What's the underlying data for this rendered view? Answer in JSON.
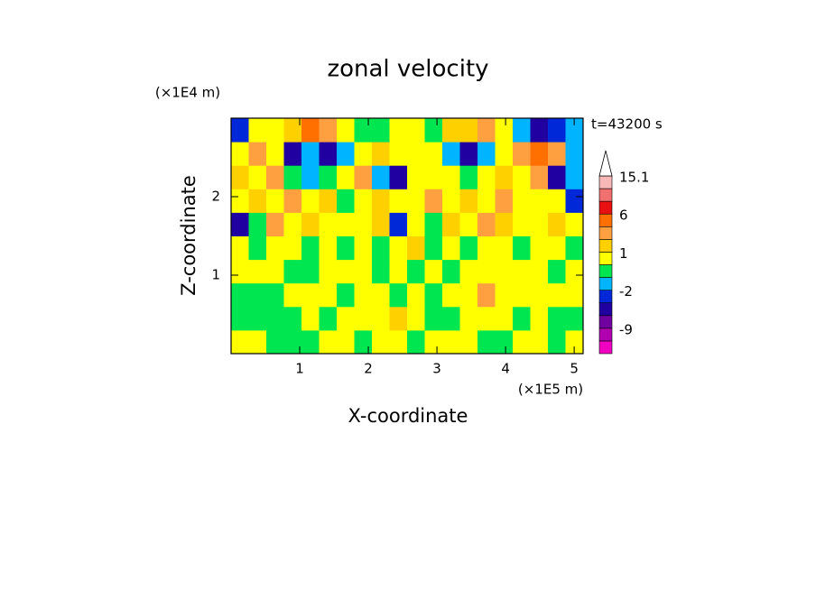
{
  "chart_data": {
    "type": "contour",
    "title": "zonal velocity",
    "xlabel": "X-coordinate",
    "ylabel": "Z-coordinate",
    "xscale_label": "(×1E5 m)",
    "yscale_label": "(×1E4 m)",
    "time_label": "t=43200 s",
    "xlim": [
      0,
      5.13
    ],
    "ylim": [
      0,
      3
    ],
    "xticks": [
      1,
      2,
      3,
      4,
      5
    ],
    "yticks": [
      1,
      2
    ],
    "levels": [
      -15,
      -12,
      -9,
      -6,
      -4,
      -2,
      -1,
      0,
      1,
      2,
      4,
      6,
      9,
      12,
      15.1
    ],
    "colors": [
      "#f000c0",
      "#b000b0",
      "#7000a0",
      "#2000a0",
      "#0028d8",
      "#00b4ff",
      "#00e650",
      "#ffff00",
      "#ffd000",
      "#ffa040",
      "#ff7000",
      "#e81010",
      "#f07070",
      "#f8b8b8"
    ],
    "colorbar_ticks": [
      15.1,
      6,
      1,
      -2,
      -9
    ],
    "z": [
      [
        0.5,
        0.5,
        -0.5,
        -0.5,
        -0.5,
        0.5,
        0.5,
        -0.5,
        0.5,
        0.5,
        -0.5,
        0.5,
        0.5,
        0.5,
        -0.5,
        -0.5,
        0.5,
        0.5,
        -0.5,
        0.5
      ],
      [
        -0.5,
        -0.5,
        -0.5,
        -0.5,
        0.5,
        -0.5,
        0.5,
        0.5,
        0.5,
        1.5,
        0.5,
        -0.5,
        -0.5,
        0.5,
        0.5,
        0.5,
        -0.5,
        0.5,
        -0.5,
        -0.5
      ],
      [
        -0.5,
        -0.5,
        -0.5,
        0.5,
        0.5,
        0.5,
        -0.5,
        0.5,
        0.5,
        -0.5,
        0.5,
        -0.5,
        0.5,
        0.5,
        2,
        0.5,
        0.5,
        0.5,
        0.5,
        0.5
      ],
      [
        0.5,
        0.5,
        0.5,
        -0.5,
        -0.5,
        0.5,
        0.5,
        0.5,
        -0.5,
        0.5,
        -0.5,
        0.5,
        -0.5,
        0.5,
        0.5,
        0.5,
        0.5,
        0.5,
        -0.5,
        0.5
      ],
      [
        0.5,
        -0.5,
        0.5,
        0.5,
        -0.5,
        0.5,
        -0.5,
        0.5,
        -0.5,
        0.5,
        1.5,
        -0.5,
        0.5,
        -0.5,
        0.5,
        0.5,
        -0.5,
        0.5,
        0.5,
        -0.5
      ],
      [
        -5,
        -0.5,
        2,
        0.5,
        1.5,
        0.5,
        0.5,
        0.5,
        1.5,
        -3,
        0.5,
        -0.5,
        1.5,
        0.5,
        2,
        1.5,
        0.5,
        0.5,
        1.5,
        0.5
      ],
      [
        0.5,
        1.5,
        0.5,
        2,
        0.5,
        1.5,
        -0.5,
        0.5,
        1.5,
        0.5,
        0.5,
        2,
        0.5,
        1.5,
        0.5,
        2,
        0.5,
        0.5,
        0.5,
        -3
      ],
      [
        1.5,
        0.5,
        2,
        -0.5,
        -1.5,
        -0.5,
        0.5,
        2,
        -1.5,
        -5,
        0.5,
        0.5,
        0.5,
        -0.5,
        0.5,
        1.5,
        0.5,
        2,
        -5,
        -1.5
      ],
      [
        0.5,
        2,
        0.5,
        -5,
        -1.5,
        -5,
        -1.5,
        0.5,
        1.5,
        0.5,
        0.5,
        0.5,
        -1.5,
        -5,
        -1.5,
        0.5,
        2,
        4,
        3,
        -1.5
      ],
      [
        -3,
        0,
        0.5,
        1.5,
        4,
        2,
        0.5,
        -0.5,
        -0.5,
        0.5,
        0.5,
        -0.5,
        1.5,
        1.5,
        2,
        0.5,
        -1.5,
        -5,
        -3,
        -1.5
      ]
    ]
  }
}
